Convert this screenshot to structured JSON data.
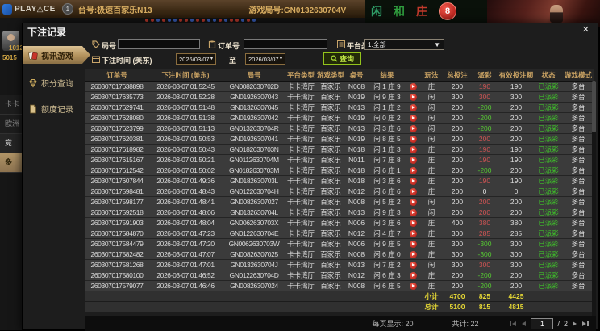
{
  "topbar": {
    "logo_text": "PLAY△CE",
    "badge": "1",
    "table_label": "台号:极速百家乐N13",
    "round_label": "游戏局号:GN0132630704V"
  },
  "background": {
    "game_chars": {
      "player": "闲",
      "tie": "和",
      "banker": "庄",
      "badge": "8"
    },
    "roadmap_dots": [
      "#c23a2c",
      "#c23a2c",
      "#3a62c2",
      "#c23a2c",
      "#3a62c2",
      "#3a62c2",
      "#c23a2c",
      "#c23a2c",
      "#3a62c2",
      "#c23a2c",
      "#c23a2c",
      "#3a62c2",
      "#3a62c2",
      "#c23a2c",
      "#3a62c2",
      "#c23a2c",
      "#c23a2c",
      "#3a62c2",
      "#c23a2c",
      "#3a62c2"
    ],
    "balance1": "1012",
    "balance2": "5015",
    "left_menu": [
      "卡卡",
      "欧洲",
      "竞",
      "多"
    ]
  },
  "modal": {
    "title": "下注记录",
    "close_label": "✕",
    "tabs": [
      {
        "label": "视讯游戏",
        "icon": "cards-icon",
        "active": true
      },
      {
        "label": "积分查询",
        "icon": "gem-icon",
        "active": false
      },
      {
        "label": "额度记录",
        "icon": "doc-icon",
        "active": false
      }
    ],
    "filters": {
      "round_label": "局号",
      "round_value": "",
      "order_label": "订单号",
      "order_value": "",
      "platform_label": "平台类型",
      "platform_value": "1.全部",
      "time_label": "下注时间 (美东)",
      "date_from": "2026/03/07",
      "to_label": "至",
      "date_to": "2026/03/07",
      "search_label": "查询",
      "dropdown_arrow": "▼"
    },
    "table": {
      "headers": [
        "订单号",
        "下注时间 (美东)",
        "局号",
        "平台类型",
        "游戏类型",
        "桌号",
        "结果",
        "",
        "玩法",
        "总投注",
        "派彩",
        "有效投注额",
        "状态",
        "游戏模式"
      ],
      "rows": [
        {
          "order": "260307017638898",
          "time": "2026-03-07 01:52:45",
          "round": "GN0082630702D",
          "hall": "卡卡湾厅",
          "game": "百家乐",
          "table": "N008",
          "result": "闲 1 庄 9",
          "bet_type": "庄",
          "total": "200",
          "payout": "190",
          "valid": "190",
          "status": "已派彩",
          "mode": "多台"
        },
        {
          "order": "260307017635773",
          "time": "2026-03-07 01:52:28",
          "round": "GN01926307043",
          "hall": "卡卡湾厅",
          "game": "百家乐",
          "table": "N019",
          "result": "闲 9 庄 3",
          "bet_type": "闲",
          "total": "300",
          "payout": "300",
          "valid": "300",
          "status": "已派彩",
          "mode": "多台"
        },
        {
          "order": "260307017629741",
          "time": "2026-03-07 01:51:48",
          "round": "GN01326307045",
          "hall": "卡卡湾厅",
          "game": "百家乐",
          "table": "N013",
          "result": "闲 1 庄 2",
          "bet_type": "闲",
          "total": "200",
          "payout": "-200",
          "valid": "200",
          "status": "已派彩",
          "mode": "多台"
        },
        {
          "order": "260307017628080",
          "time": "2026-03-07 01:51:38",
          "round": "GN01926307042",
          "hall": "卡卡湾厅",
          "game": "百家乐",
          "table": "N019",
          "result": "闲 0 庄 2",
          "bet_type": "闲",
          "total": "200",
          "payout": "-200",
          "valid": "200",
          "status": "已派彩",
          "mode": "多台"
        },
        {
          "order": "260307017623799",
          "time": "2026-03-07 01:51:13",
          "round": "GN0132630704R",
          "hall": "卡卡湾厅",
          "game": "百家乐",
          "table": "N013",
          "result": "闲 3 庄 6",
          "bet_type": "闲",
          "total": "200",
          "payout": "-200",
          "valid": "200",
          "status": "已派彩",
          "mode": "多台"
        },
        {
          "order": "260307017620381",
          "time": "2026-03-07 01:50:53",
          "round": "GN01926307041",
          "hall": "卡卡湾厅",
          "game": "百家乐",
          "table": "N019",
          "result": "闲 8 庄 5",
          "bet_type": "闲",
          "total": "200",
          "payout": "200",
          "valid": "200",
          "status": "已派彩",
          "mode": "多台"
        },
        {
          "order": "260307017618982",
          "time": "2026-03-07 01:50:43",
          "round": "GN0182630703N",
          "hall": "卡卡湾厅",
          "game": "百家乐",
          "table": "N018",
          "result": "闲 1 庄 3",
          "bet_type": "庄",
          "total": "200",
          "payout": "190",
          "valid": "190",
          "status": "已派彩",
          "mode": "多台"
        },
        {
          "order": "260307017615167",
          "time": "2026-03-07 01:50:21",
          "round": "GN0112630704M",
          "hall": "卡卡湾厅",
          "game": "百家乐",
          "table": "N011",
          "result": "闲 7 庄 8",
          "bet_type": "庄",
          "total": "200",
          "payout": "190",
          "valid": "190",
          "status": "已派彩",
          "mode": "多台"
        },
        {
          "order": "260307017612542",
          "time": "2026-03-07 01:50:02",
          "round": "GN0182630703M",
          "hall": "卡卡湾厅",
          "game": "百家乐",
          "table": "N018",
          "result": "闲 6 庄 1",
          "bet_type": "庄",
          "total": "200",
          "payout": "-200",
          "valid": "200",
          "status": "已派彩",
          "mode": "多台"
        },
        {
          "order": "260307017607844",
          "time": "2026-03-07 01:49:36",
          "round": "GN0182630703L",
          "hall": "卡卡湾厅",
          "game": "百家乐",
          "table": "N018",
          "result": "闲 3 庄 6",
          "bet_type": "庄",
          "total": "200",
          "payout": "190",
          "valid": "190",
          "status": "已派彩",
          "mode": "多台"
        },
        {
          "order": "260307017598481",
          "time": "2026-03-07 01:48:43",
          "round": "GN0122630704H",
          "hall": "卡卡湾厅",
          "game": "百家乐",
          "table": "N012",
          "result": "闲 6 庄 6",
          "bet_type": "庄",
          "total": "200",
          "payout": "0",
          "valid": "0",
          "status": "已派彩",
          "mode": "多台"
        },
        {
          "order": "260307017598177",
          "time": "2026-03-07 01:48:41",
          "round": "GN00826307027",
          "hall": "卡卡湾厅",
          "game": "百家乐",
          "table": "N008",
          "result": "闲 5 庄 2",
          "bet_type": "闲",
          "total": "200",
          "payout": "200",
          "valid": "200",
          "status": "已派彩",
          "mode": "多台"
        },
        {
          "order": "260307017592518",
          "time": "2026-03-07 01:48:06",
          "round": "GN0132630704L",
          "hall": "卡卡湾厅",
          "game": "百家乐",
          "table": "N013",
          "result": "闲 9 庄 3",
          "bet_type": "闲",
          "total": "200",
          "payout": "200",
          "valid": "200",
          "status": "已派彩",
          "mode": "多台"
        },
        {
          "order": "260307017591903",
          "time": "2026-03-07 01:48:04",
          "round": "GN0062630703X",
          "hall": "卡卡湾厅",
          "game": "百家乐",
          "table": "N006",
          "result": "闲 3 庄 6",
          "bet_type": "庄",
          "total": "400",
          "payout": "380",
          "valid": "380",
          "status": "已派彩",
          "mode": "多台"
        },
        {
          "order": "260307017584870",
          "time": "2026-03-07 01:47:23",
          "round": "GN0122630704E",
          "hall": "卡卡湾厅",
          "game": "百家乐",
          "table": "N012",
          "result": "闲 4 庄 7",
          "bet_type": "庄",
          "total": "300",
          "payout": "285",
          "valid": "285",
          "status": "已派彩",
          "mode": "多台"
        },
        {
          "order": "260307017584479",
          "time": "2026-03-07 01:47:20",
          "round": "GN0062630703W",
          "hall": "卡卡湾厅",
          "game": "百家乐",
          "table": "N006",
          "result": "闲 9 庄 5",
          "bet_type": "庄",
          "total": "300",
          "payout": "-300",
          "valid": "300",
          "status": "已派彩",
          "mode": "多台"
        },
        {
          "order": "260307017582482",
          "time": "2026-03-07 01:47:07",
          "round": "GN00826307025",
          "hall": "卡卡湾厅",
          "game": "百家乐",
          "table": "N008",
          "result": "闲 6 庄 0",
          "bet_type": "庄",
          "total": "300",
          "payout": "-300",
          "valid": "300",
          "status": "已派彩",
          "mode": "多台"
        },
        {
          "order": "260307017581268",
          "time": "2026-03-07 01:47:01",
          "round": "GN0132630704J",
          "hall": "卡卡湾厅",
          "game": "百家乐",
          "table": "N013",
          "result": "闲 7 庄 2",
          "bet_type": "闲",
          "total": "300",
          "payout": "300",
          "valid": "300",
          "status": "已派彩",
          "mode": "多台"
        },
        {
          "order": "260307017580100",
          "time": "2026-03-07 01:46:52",
          "round": "GN0122630704D",
          "hall": "卡卡湾厅",
          "game": "百家乐",
          "table": "N012",
          "result": "闲 6 庄 3",
          "bet_type": "庄",
          "total": "200",
          "payout": "-200",
          "valid": "200",
          "status": "已派彩",
          "mode": "多台"
        },
        {
          "order": "260307017579077",
          "time": "2026-03-07 01:46:46",
          "round": "GN00826307024",
          "hall": "卡卡湾厅",
          "game": "百家乐",
          "table": "N008",
          "result": "闲 6 庄 5",
          "bet_type": "庄",
          "total": "200",
          "payout": "-200",
          "valid": "200",
          "status": "已派彩",
          "mode": "多台"
        }
      ],
      "subtotal_label": "小计",
      "subtotal": {
        "total": "4700",
        "payout": "825",
        "valid": "4425"
      },
      "total_label": "总计",
      "total": {
        "total": "5100",
        "payout": "815",
        "valid": "4815"
      }
    },
    "footer": {
      "page_size_label": "每页显示: 20",
      "total_count_label": "共计: 22",
      "current_page": "1",
      "page_separator": "/",
      "total_pages": "2"
    }
  }
}
